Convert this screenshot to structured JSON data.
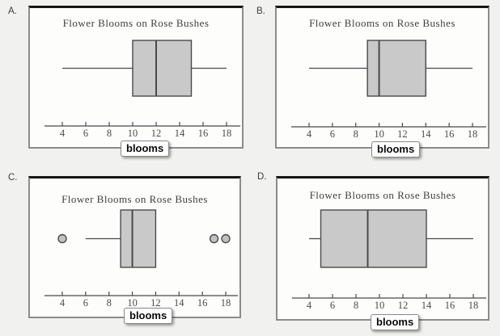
{
  "page": {
    "background": "#f1f1ef"
  },
  "colors": {
    "box_fill": "#c9c9c9",
    "line": "#4a4a4a",
    "outlier_fill": "#c2c2c2",
    "panel_border": "#8c8c8c",
    "panel_top_bar": "#161616"
  },
  "panels": [
    {
      "label": "A.",
      "title": "Flower Blooms on Rose Bushes",
      "axis_label": "blooms"
    },
    {
      "label": "B.",
      "title": "Flower Blooms on Rose Bushes",
      "axis_label": "blooms"
    },
    {
      "label": "C.",
      "title": "Flower Blooms on Rose Bushes",
      "axis_label": "blooms"
    },
    {
      "label": "D.",
      "title": "Flower Blooms on Rose Bushes",
      "axis_label": "blooms"
    }
  ],
  "chart_data": [
    {
      "type": "boxplot",
      "option": "A",
      "title": "Flower Blooms on Rose Bushes",
      "xlabel": "blooms",
      "x_ticks": [
        4,
        6,
        8,
        10,
        12,
        14,
        16,
        18
      ],
      "xlim": [
        2,
        19.5
      ],
      "whisker_low": 4,
      "q1": 10,
      "median": 12,
      "q3": 15,
      "whisker_high": 18,
      "outliers": []
    },
    {
      "type": "boxplot",
      "option": "B",
      "title": "Flower Blooms on Rose Bushes",
      "xlabel": "blooms",
      "x_ticks": [
        4,
        6,
        8,
        10,
        12,
        14,
        16,
        18
      ],
      "xlim": [
        2,
        19.5
      ],
      "whisker_low": 4,
      "q1": 9,
      "median": 10,
      "q3": 14,
      "whisker_high": 18,
      "outliers": []
    },
    {
      "type": "boxplot",
      "option": "C",
      "title": "Flower Blooms on Rose Bushes",
      "xlabel": "blooms",
      "x_ticks": [
        4,
        6,
        8,
        10,
        12,
        14,
        16,
        18
      ],
      "xlim": [
        2,
        19.5
      ],
      "whisker_low": 6,
      "q1": 9,
      "median": 10,
      "q3": 12,
      "whisker_high": 12,
      "outliers": [
        4,
        17,
        18
      ]
    },
    {
      "type": "boxplot",
      "option": "D",
      "title": "Flower Blooms on Rose Bushes",
      "xlabel": "blooms",
      "x_ticks": [
        4,
        6,
        8,
        10,
        12,
        14,
        16,
        18
      ],
      "xlim": [
        2,
        19.5
      ],
      "whisker_low": 4,
      "q1": 5,
      "median": 9,
      "q3": 14,
      "whisker_high": 18,
      "outliers": []
    }
  ]
}
